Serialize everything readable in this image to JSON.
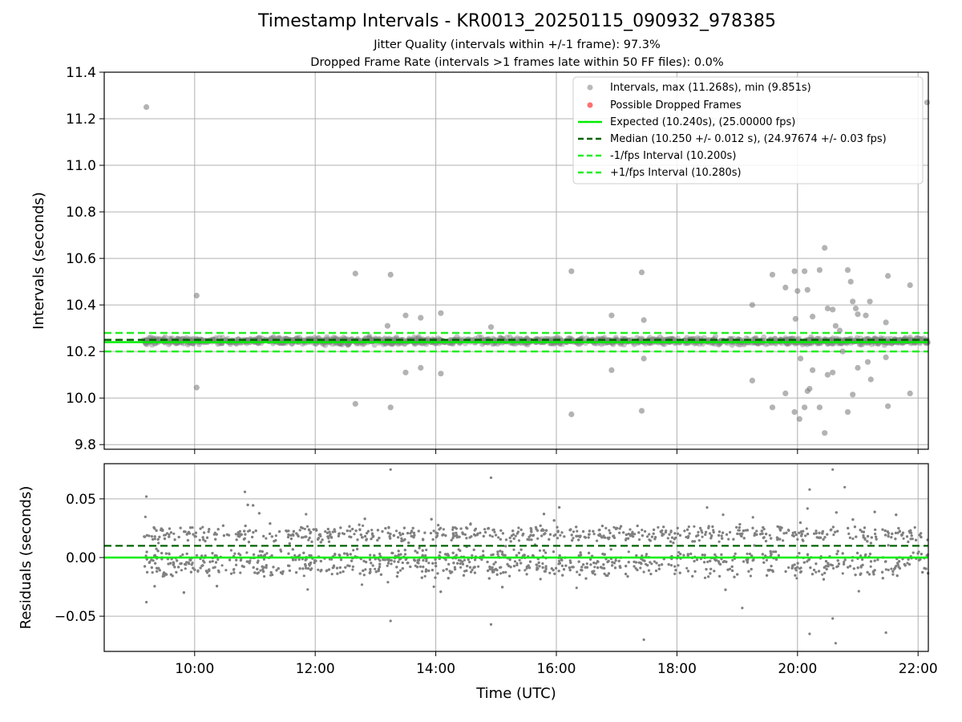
{
  "title": "Timestamp Intervals - KR0013_20250115_090932_978385",
  "subtitle_lines": [
    "Jitter Quality (intervals within +/-1 frame): 97.3%",
    "Dropped Frame Rate (intervals >1 frames late within 50 FF files): 0.0%"
  ],
  "colors": {
    "scatter": "#808080",
    "dropped": "#ff3333",
    "expected": "#00ee00",
    "median": "#006400",
    "fps_bounds": "#22ee22",
    "grid": "#b0b0b0"
  },
  "chart_data": [
    {
      "type": "scatter",
      "xlabel": "",
      "ylabel": "Intervals (seconds)",
      "xlim_hours": [
        8.5,
        22.17
      ],
      "ylim": [
        9.78,
        11.4
      ],
      "yticks": [
        9.8,
        10.0,
        10.2,
        10.4,
        10.6,
        10.8,
        11.0,
        11.2,
        11.4
      ],
      "ytick_labels": [
        "9.8",
        "10.0",
        "10.2",
        "10.4",
        "10.6",
        "10.8",
        "11.0",
        "11.2",
        "11.4"
      ],
      "xticks_hours": [
        10,
        12,
        14,
        16,
        18,
        20,
        22
      ],
      "grid": true,
      "legend_position": "top-right",
      "legend": [
        "Intervals, max (11.268s), min (9.851s)",
        "Possible Dropped Frames",
        "Expected (10.240s), (25.00000 fps)",
        "Median (10.250 +/- 0.012 s), (24.97674 +/- 0.03 fps)",
        "-1/fps Interval (10.200s)",
        "+1/fps Interval (10.280s)"
      ],
      "lines": {
        "expected": 10.24,
        "median": 10.25,
        "minus_fps": 10.2,
        "plus_fps": 10.28
      },
      "series": [
        {
          "name": "Intervals, max (11.268s), min (9.851s)",
          "band": {
            "x_range": [
              9.15,
              22.17
            ],
            "center": 10.245,
            "spread": 0.03
          },
          "outliers": [
            {
              "x": "09:12",
              "y": 11.25
            },
            {
              "x": "10:02",
              "y": 10.44
            },
            {
              "x": "10:02",
              "y": 10.045
            },
            {
              "x": "12:40",
              "y": 10.535
            },
            {
              "x": "12:40",
              "y": 9.975
            },
            {
              "x": "13:15",
              "y": 10.53
            },
            {
              "x": "13:15",
              "y": 9.96
            },
            {
              "x": "13:30",
              "y": 10.355
            },
            {
              "x": "13:30",
              "y": 10.11
            },
            {
              "x": "13:45",
              "y": 10.345
            },
            {
              "x": "13:45",
              "y": 10.13
            },
            {
              "x": "14:05",
              "y": 10.365
            },
            {
              "x": "14:05",
              "y": 10.105
            },
            {
              "x": "14:55",
              "y": 10.305
            },
            {
              "x": "13:12",
              "y": 10.31
            },
            {
              "x": "16:15",
              "y": 10.545
            },
            {
              "x": "16:15",
              "y": 9.93
            },
            {
              "x": "16:55",
              "y": 10.355
            },
            {
              "x": "16:55",
              "y": 10.12
            },
            {
              "x": "17:25",
              "y": 10.54
            },
            {
              "x": "17:25",
              "y": 9.945
            },
            {
              "x": "17:27",
              "y": 10.335
            },
            {
              "x": "17:27",
              "y": 10.17
            },
            {
              "x": "19:15",
              "y": 10.4
            },
            {
              "x": "19:15",
              "y": 10.075
            },
            {
              "x": "19:35",
              "y": 10.53
            },
            {
              "x": "19:35",
              "y": 9.96
            },
            {
              "x": "19:48",
              "y": 10.475
            },
            {
              "x": "19:48",
              "y": 10.02
            },
            {
              "x": "19:57",
              "y": 10.545
            },
            {
              "x": "19:57",
              "y": 9.94
            },
            {
              "x": "20:00",
              "y": 10.46
            },
            {
              "x": "20:02",
              "y": 9.91
            },
            {
              "x": "20:07",
              "y": 10.545
            },
            {
              "x": "20:07",
              "y": 9.96
            },
            {
              "x": "20:10",
              "y": 10.465
            },
            {
              "x": "20:10",
              "y": 10.03
            },
            {
              "x": "20:15",
              "y": 10.35
            },
            {
              "x": "20:15",
              "y": 10.12
            },
            {
              "x": "20:22",
              "y": 10.55
            },
            {
              "x": "20:22",
              "y": 9.96
            },
            {
              "x": "20:27",
              "y": 10.645
            },
            {
              "x": "20:27",
              "y": 9.85
            },
            {
              "x": "20:30",
              "y": 10.385
            },
            {
              "x": "20:30",
              "y": 10.1
            },
            {
              "x": "20:35",
              "y": 10.38
            },
            {
              "x": "20:35",
              "y": 10.11
            },
            {
              "x": "20:38",
              "y": 10.31
            },
            {
              "x": "20:42",
              "y": 10.29
            },
            {
              "x": "20:50",
              "y": 10.55
            },
            {
              "x": "20:50",
              "y": 9.94
            },
            {
              "x": "20:53",
              "y": 10.5
            },
            {
              "x": "20:55",
              "y": 10.415
            },
            {
              "x": "20:55",
              "y": 10.015
            },
            {
              "x": "20:58",
              "y": 10.385
            },
            {
              "x": "21:00",
              "y": 10.36
            },
            {
              "x": "21:00",
              "y": 10.13
            },
            {
              "x": "21:08",
              "y": 10.355
            },
            {
              "x": "21:10",
              "y": 10.155
            },
            {
              "x": "21:12",
              "y": 10.415
            },
            {
              "x": "21:13",
              "y": 10.08
            },
            {
              "x": "21:28",
              "y": 10.325
            },
            {
              "x": "21:28",
              "y": 10.175
            },
            {
              "x": "21:30",
              "y": 10.525
            },
            {
              "x": "21:30",
              "y": 9.965
            },
            {
              "x": "21:52",
              "y": 10.485
            },
            {
              "x": "21:52",
              "y": 10.02
            },
            {
              "x": "22:09",
              "y": 11.27
            },
            {
              "x": "19:58",
              "y": 10.34
            },
            {
              "x": "20:12",
              "y": 10.04
            },
            {
              "x": "20:03",
              "y": 10.17
            },
            {
              "x": "20:45",
              "y": 10.2
            }
          ]
        },
        {
          "name": "Possible Dropped Frames",
          "points": []
        }
      ]
    },
    {
      "type": "scatter",
      "xlabel": "Time (UTC)",
      "ylabel": "Residuals (seconds)",
      "xlim_hours": [
        8.5,
        22.17
      ],
      "ylim": [
        -0.08,
        0.08
      ],
      "yticks": [
        -0.05,
        0.0,
        0.05
      ],
      "ytick_labels": [
        "−0.05",
        "0.00",
        "0.05"
      ],
      "xticks_hours": [
        10,
        12,
        14,
        16,
        18,
        20,
        22
      ],
      "xtick_labels": [
        "10:00",
        "12:00",
        "14:00",
        "16:00",
        "18:00",
        "20:00",
        "22:00"
      ],
      "grid": true,
      "lines": {
        "zero": 0.0,
        "median_offset": 0.01
      },
      "series": [
        {
          "name": "Residuals",
          "band": {
            "x_range": [
              9.15,
              22.17
            ],
            "levels": [
              0.02,
              0.0,
              -0.01
            ],
            "spread": 0.03
          },
          "outliers": [
            {
              "x": "09:12",
              "y": 0.052
            },
            {
              "x": "09:12",
              "y": -0.038
            },
            {
              "x": "10:50",
              "y": 0.056
            },
            {
              "x": "13:15",
              "y": 0.075
            },
            {
              "x": "13:15",
              "y": -0.054
            },
            {
              "x": "14:55",
              "y": 0.068
            },
            {
              "x": "14:55",
              "y": -0.057
            },
            {
              "x": "17:27",
              "y": -0.07
            },
            {
              "x": "20:12",
              "y": 0.058
            },
            {
              "x": "20:12",
              "y": -0.065
            },
            {
              "x": "20:35",
              "y": 0.075
            },
            {
              "x": "20:35",
              "y": -0.052
            },
            {
              "x": "20:38",
              "y": -0.073
            },
            {
              "x": "20:47",
              "y": 0.06
            },
            {
              "x": "21:28",
              "y": -0.064
            },
            {
              "x": "19:05",
              "y": -0.043
            }
          ]
        }
      ]
    }
  ]
}
